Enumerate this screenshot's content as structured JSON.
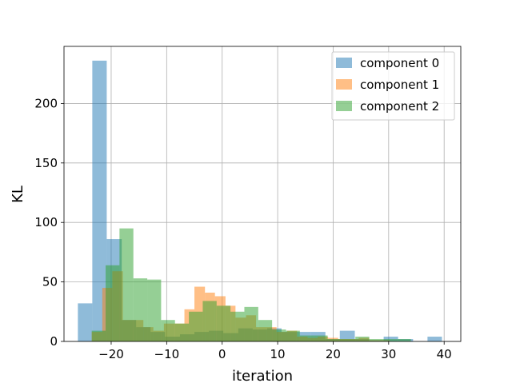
{
  "chart_data": {
    "type": "histogram",
    "title": "",
    "xlabel": "iteration",
    "ylabel": "KL",
    "xlim": [
      -28.5,
      43.0
    ],
    "ylim": [
      0,
      248
    ],
    "xticks": [
      -20,
      -10,
      0,
      10,
      20,
      30,
      40
    ],
    "yticks": [
      0,
      50,
      100,
      150,
      200
    ],
    "grid": true,
    "legend_position": "top-right",
    "series": [
      {
        "name": "component 0",
        "color": "#1f77b4",
        "alpha": 0.5,
        "bins": [
          {
            "x0": -26.0,
            "x1": -23.4,
            "count": 32
          },
          {
            "x0": -23.4,
            "x1": -20.8,
            "count": 236
          },
          {
            "x0": -20.8,
            "x1": -18.1,
            "count": 86
          },
          {
            "x0": -18.1,
            "x1": -15.5,
            "count": 18
          },
          {
            "x0": -15.5,
            "x1": -12.9,
            "count": 12
          },
          {
            "x0": -12.9,
            "x1": -10.3,
            "count": 8
          },
          {
            "x0": -10.3,
            "x1": -7.6,
            "count": 4
          },
          {
            "x0": -7.6,
            "x1": -5.0,
            "count": 6
          },
          {
            "x0": -5.0,
            "x1": -2.4,
            "count": 8
          },
          {
            "x0": -2.4,
            "x1": 0.2,
            "count": 9
          },
          {
            "x0": 0.2,
            "x1": 2.9,
            "count": 7
          },
          {
            "x0": 2.9,
            "x1": 5.5,
            "count": 11
          },
          {
            "x0": 5.5,
            "x1": 8.1,
            "count": 10
          },
          {
            "x0": 8.1,
            "x1": 10.7,
            "count": 11
          },
          {
            "x0": 10.7,
            "x1": 13.4,
            "count": 8
          },
          {
            "x0": 13.4,
            "x1": 16.0,
            "count": 8
          },
          {
            "x0": 16.0,
            "x1": 18.6,
            "count": 8
          },
          {
            "x0": 18.6,
            "x1": 21.2,
            "count": 2
          },
          {
            "x0": 21.2,
            "x1": 23.9,
            "count": 9
          },
          {
            "x0": 23.9,
            "x1": 26.5,
            "count": 2
          },
          {
            "x0": 26.5,
            "x1": 29.1,
            "count": 1
          },
          {
            "x0": 29.1,
            "x1": 31.7,
            "count": 4
          },
          {
            "x0": 31.7,
            "x1": 34.4,
            "count": 2
          },
          {
            "x0": 34.4,
            "x1": 37.0,
            "count": 0
          },
          {
            "x0": 37.0,
            "x1": 39.6,
            "count": 4
          }
        ]
      },
      {
        "name": "component 1",
        "color": "#ff7f0e",
        "alpha": 0.5,
        "bins": [
          {
            "x0": -23.5,
            "x1": -21.6,
            "count": 8
          },
          {
            "x0": -21.6,
            "x1": -19.8,
            "count": 45
          },
          {
            "x0": -19.8,
            "x1": -17.9,
            "count": 59
          },
          {
            "x0": -17.9,
            "x1": -16.1,
            "count": 18
          },
          {
            "x0": -16.1,
            "x1": -14.2,
            "count": 18
          },
          {
            "x0": -14.2,
            "x1": -12.4,
            "count": 12
          },
          {
            "x0": -12.4,
            "x1": -10.5,
            "count": 9
          },
          {
            "x0": -10.5,
            "x1": -8.7,
            "count": 15
          },
          {
            "x0": -8.7,
            "x1": -6.8,
            "count": 15
          },
          {
            "x0": -6.8,
            "x1": -5.0,
            "count": 27
          },
          {
            "x0": -5.0,
            "x1": -3.1,
            "count": 46
          },
          {
            "x0": -3.1,
            "x1": -1.3,
            "count": 41
          },
          {
            "x0": -1.3,
            "x1": 0.6,
            "count": 38
          },
          {
            "x0": 0.6,
            "x1": 2.4,
            "count": 30
          },
          {
            "x0": 2.4,
            "x1": 4.3,
            "count": 20
          },
          {
            "x0": 4.3,
            "x1": 6.1,
            "count": 22
          },
          {
            "x0": 6.1,
            "x1": 8.0,
            "count": 12
          },
          {
            "x0": 8.0,
            "x1": 9.8,
            "count": 12
          },
          {
            "x0": 9.8,
            "x1": 11.7,
            "count": 8
          },
          {
            "x0": 11.7,
            "x1": 13.5,
            "count": 9
          },
          {
            "x0": 13.5,
            "x1": 15.4,
            "count": 4
          },
          {
            "x0": 15.4,
            "x1": 17.2,
            "count": 3
          },
          {
            "x0": 17.2,
            "x1": 19.1,
            "count": 4
          },
          {
            "x0": 19.1,
            "x1": 20.9,
            "count": 3
          },
          {
            "x0": 20.9,
            "x1": 22.8,
            "count": 2
          },
          {
            "x0": 22.8,
            "x1": 24.6,
            "count": 2
          },
          {
            "x0": 24.6,
            "x1": 26.5,
            "count": 3
          },
          {
            "x0": 26.5,
            "x1": 28.3,
            "count": 1
          },
          {
            "x0": 28.3,
            "x1": 30.2,
            "count": 1
          }
        ]
      },
      {
        "name": "component 2",
        "color": "#2ca02c",
        "alpha": 0.5,
        "bins": [
          {
            "x0": -23.5,
            "x1": -21.0,
            "count": 9
          },
          {
            "x0": -21.0,
            "x1": -18.5,
            "count": 64
          },
          {
            "x0": -18.5,
            "x1": -16.0,
            "count": 95
          },
          {
            "x0": -16.0,
            "x1": -13.5,
            "count": 53
          },
          {
            "x0": -13.5,
            "x1": -11.0,
            "count": 52
          },
          {
            "x0": -11.0,
            "x1": -8.5,
            "count": 18
          },
          {
            "x0": -8.5,
            "x1": -6.0,
            "count": 15
          },
          {
            "x0": -6.0,
            "x1": -3.5,
            "count": 25
          },
          {
            "x0": -3.5,
            "x1": -1.0,
            "count": 34
          },
          {
            "x0": -1.0,
            "x1": 1.5,
            "count": 30
          },
          {
            "x0": 1.5,
            "x1": 4.0,
            "count": 25
          },
          {
            "x0": 4.0,
            "x1": 6.5,
            "count": 29
          },
          {
            "x0": 6.5,
            "x1": 9.0,
            "count": 18
          },
          {
            "x0": 9.0,
            "x1": 11.5,
            "count": 10
          },
          {
            "x0": 11.5,
            "x1": 14.0,
            "count": 9
          },
          {
            "x0": 14.0,
            "x1": 16.5,
            "count": 5
          },
          {
            "x0": 16.5,
            "x1": 19.0,
            "count": 5
          },
          {
            "x0": 19.0,
            "x1": 21.5,
            "count": 2
          },
          {
            "x0": 21.5,
            "x1": 24.0,
            "count": 2
          },
          {
            "x0": 24.0,
            "x1": 26.5,
            "count": 4
          },
          {
            "x0": 26.5,
            "x1": 29.0,
            "count": 2
          },
          {
            "x0": 29.0,
            "x1": 31.5,
            "count": 2
          },
          {
            "x0": 31.5,
            "x1": 34.0,
            "count": 2
          }
        ]
      }
    ]
  }
}
